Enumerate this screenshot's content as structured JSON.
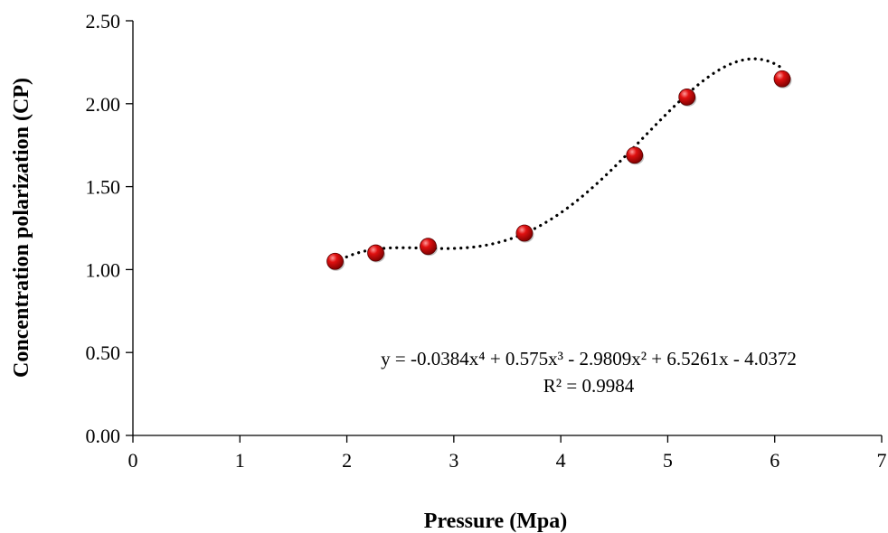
{
  "chart_data": {
    "type": "scatter",
    "title": "",
    "xlabel": "Pressure (Mpa)",
    "ylabel": "Concentration polarization (CP)",
    "xlim": [
      0,
      7
    ],
    "ylim": [
      0,
      2.5
    ],
    "x_ticks": [
      "0",
      "1",
      "2",
      "3",
      "4",
      "5",
      "6",
      "7"
    ],
    "y_ticks": [
      "0.00",
      "0.50",
      "1.00",
      "1.50",
      "2.00",
      "2.50"
    ],
    "grid": false,
    "legend": "none",
    "marker_color": "#cc0000",
    "series": [
      {
        "x": [
          1.89,
          2.27,
          2.76,
          3.66,
          4.69,
          5.18,
          6.07
        ],
        "y": [
          1.05,
          1.1,
          1.14,
          1.22,
          1.69,
          2.04,
          2.15
        ]
      }
    ],
    "trendline": {
      "type": "polynomial",
      "order": 4,
      "coefficients": [
        -0.0384,
        0.575,
        -2.9809,
        6.5261,
        -4.0372
      ],
      "x_range": [
        1.89,
        6.07
      ],
      "style": "dotted"
    },
    "annotations": {
      "equation": "y = -0.0384x⁴ + 0.575x³ - 2.9809x² + 6.5261x - 4.0372",
      "r_squared": "R² = 0.9984"
    }
  }
}
